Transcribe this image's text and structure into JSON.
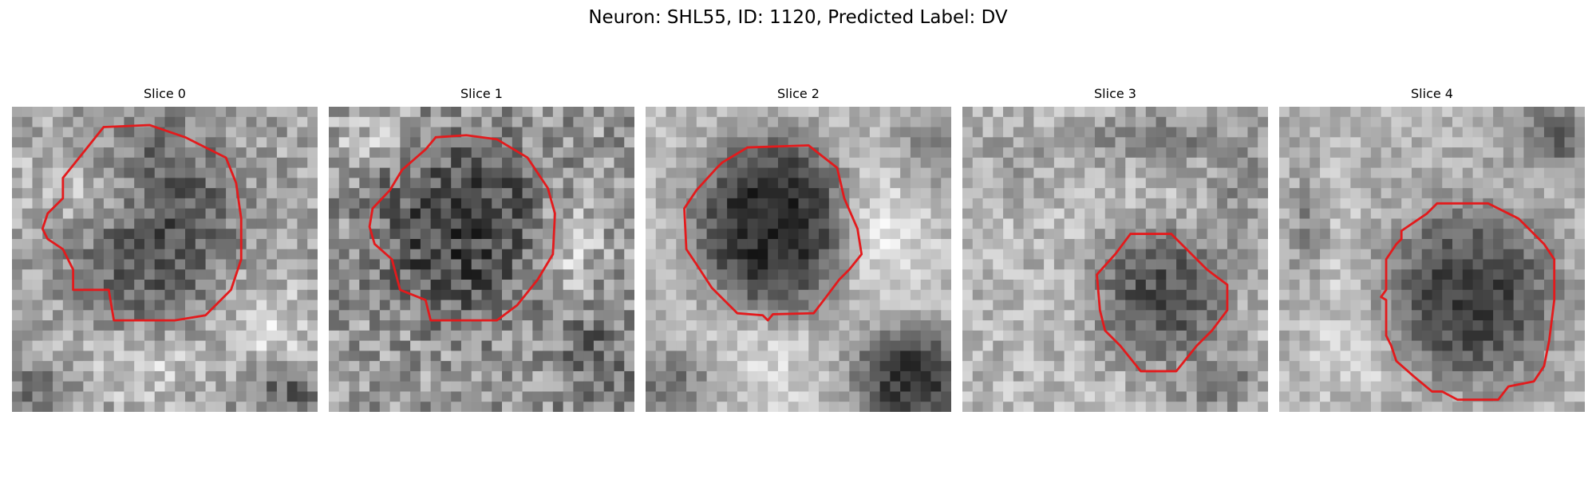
{
  "figure": {
    "title": "Neuron: SHL55, ID: 1120, Predicted Label: DV"
  },
  "panels": [
    {
      "title": "Slice 0",
      "contour_color": "#e31a1c"
    },
    {
      "title": "Slice 1",
      "contour_color": "#e31a1c"
    },
    {
      "title": "Slice 2",
      "contour_color": "#e31a1c"
    },
    {
      "title": "Slice 3",
      "contour_color": "#e31a1c"
    },
    {
      "title": "Slice 4",
      "contour_color": "#e31a1c"
    }
  ]
}
